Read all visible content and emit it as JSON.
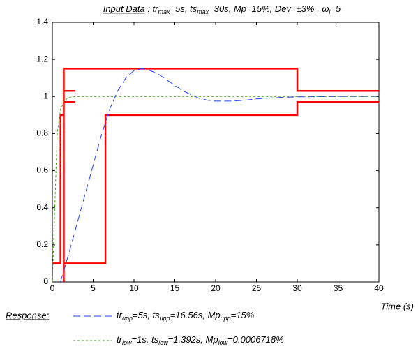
{
  "chart_data": {
    "type": "line",
    "title": {
      "label": "Input Data",
      "text": [
        " : tr",
        "max",
        "=5s, ts",
        "max",
        "=30s, Mp=15%, Dev=±3% , ω",
        "i",
        "=5"
      ]
    },
    "xlabel": "Time (s)",
    "legend_title": "Response:",
    "xlim": [
      0,
      40
    ],
    "ylim": [
      0,
      1.4
    ],
    "xticks": [
      0,
      5,
      10,
      15,
      20,
      25,
      30,
      35,
      40
    ],
    "yticks": [
      0,
      0.2,
      0.4,
      0.6,
      0.8,
      1,
      1.2,
      1.4
    ],
    "bounds": {
      "color": "#ff0000",
      "x": [
        0,
        1,
        1,
        1.4,
        1.4,
        2.8,
        null,
        1.4,
        1.4,
        30,
        30,
        40,
        null,
        1.4,
        2.8,
        null,
        1.4,
        6.5,
        6.5,
        30,
        30,
        40
      ],
      "y": [
        0.1,
        0.1,
        0.9,
        0.9,
        0.97,
        0.97,
        null,
        0,
        1.15,
        1.15,
        1.03,
        1.03,
        null,
        1.03,
        1.03,
        null,
        0.1,
        0.1,
        0.9,
        0.9,
        0.97,
        0.97
      ]
    },
    "series": [
      {
        "name": [
          "tr",
          "upp",
          "=5s, ts",
          "upp",
          "=16.56s, Mp",
          "upp",
          "=15%"
        ],
        "color": "#1f3fff",
        "x": [
          1,
          2,
          3,
          4,
          5,
          6,
          7,
          8,
          9,
          10,
          11,
          12,
          13,
          14,
          15,
          16,
          17,
          18,
          19,
          20,
          21,
          22,
          23,
          24,
          25,
          26,
          28,
          30,
          35,
          40
        ],
        "values": [
          0,
          0.15,
          0.31,
          0.47,
          0.63,
          0.79,
          0.93,
          1.03,
          1.1,
          1.14,
          1.15,
          1.14,
          1.12,
          1.09,
          1.06,
          1.03,
          1.01,
          0.99,
          0.98,
          0.975,
          0.975,
          0.975,
          0.978,
          0.982,
          0.987,
          0.99,
          0.995,
          0.998,
          1,
          1
        ]
      },
      {
        "name": [
          "tr",
          "low",
          "=1s, ts",
          "low",
          "=1.392s, Mp",
          "low",
          "=0.0006718%"
        ],
        "color": "#33aa00",
        "x": [
          0,
          0.3,
          0.6,
          1,
          1.5,
          2,
          3,
          40
        ],
        "values": [
          0,
          0.4,
          0.8,
          0.93,
          0.98,
          0.995,
          1,
          1
        ]
      }
    ]
  }
}
